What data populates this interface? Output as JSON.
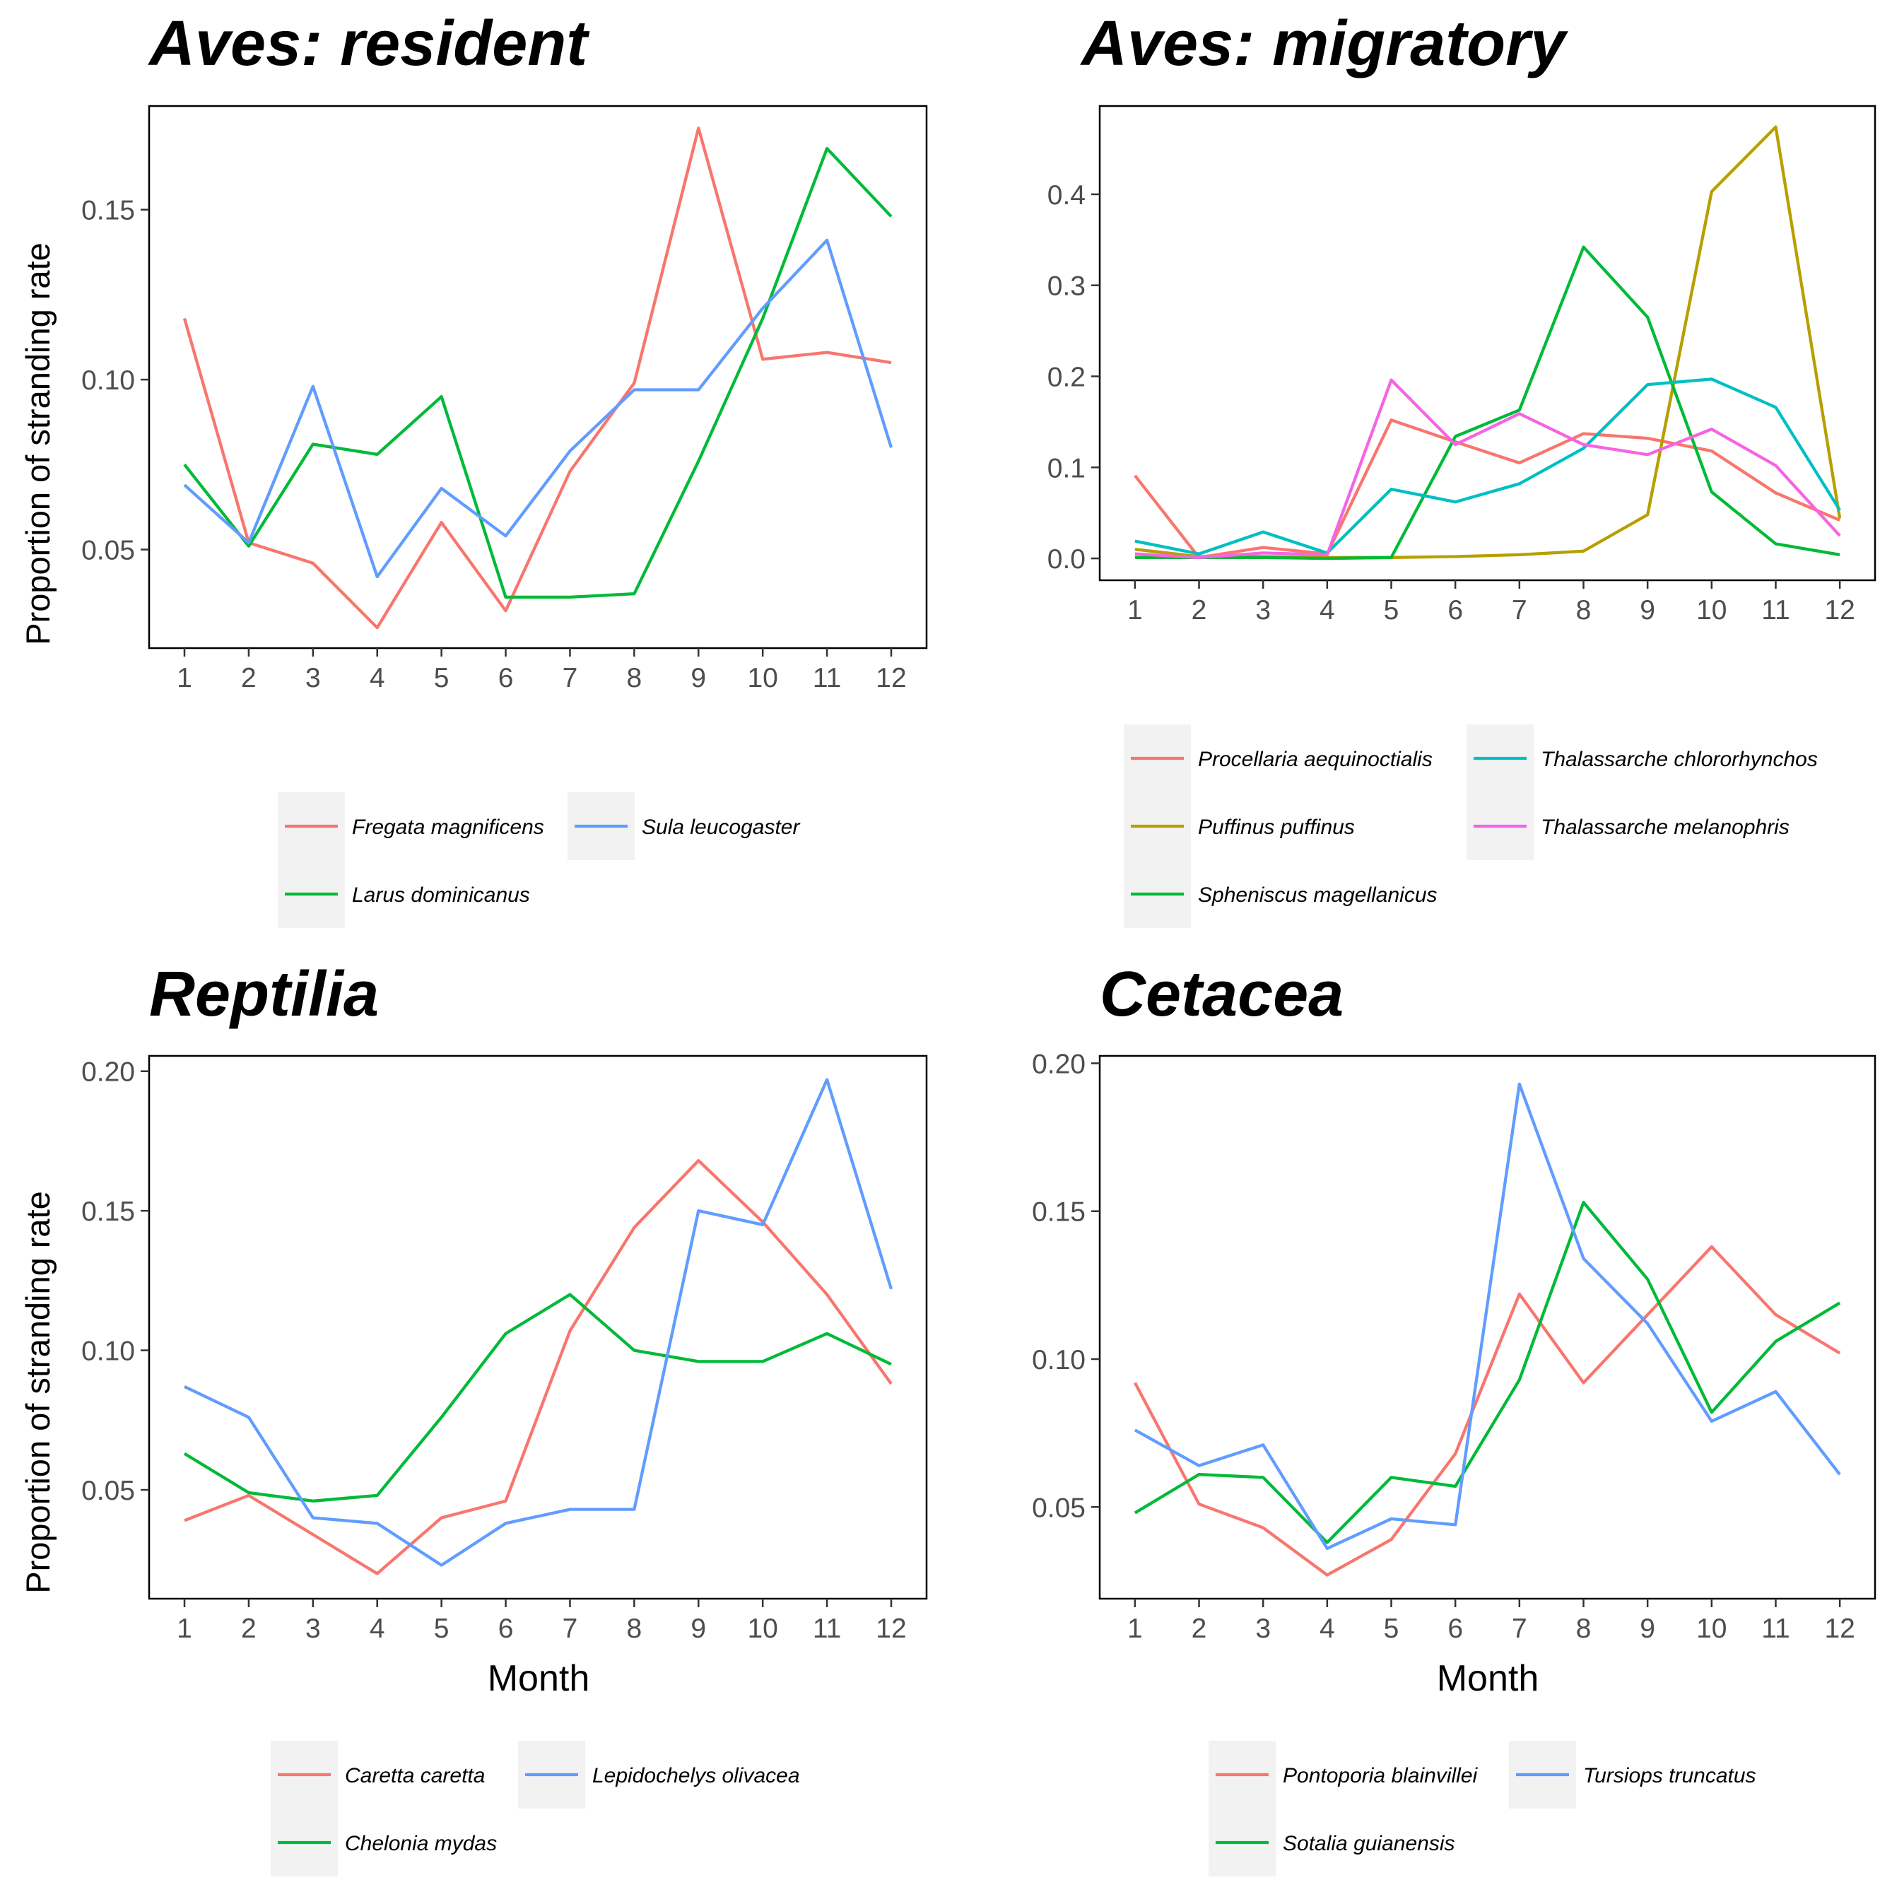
{
  "chart_data": [
    {
      "type": "line",
      "title": "Aves: resident",
      "xlabel": "",
      "ylabel": "Proportion of stranding rate",
      "x": [
        1,
        2,
        3,
        4,
        5,
        6,
        7,
        8,
        9,
        10,
        11,
        12
      ],
      "xticks": [
        "1",
        "2",
        "3",
        "4",
        "5",
        "6",
        "7",
        "8",
        "9",
        "10",
        "11",
        "12"
      ],
      "ylim": [
        0.021,
        0.1805
      ],
      "yticks": [
        "0.05",
        "0.10",
        "0.15"
      ],
      "ytick_values": [
        0.05,
        0.1,
        0.15
      ],
      "legend_position": "bottom",
      "series": [
        {
          "name": "Fregata magnificens",
          "color": "#F8766D",
          "values": [
            0.118,
            0.052,
            0.046,
            0.027,
            0.058,
            0.032,
            0.073,
            0.099,
            0.174,
            0.106,
            0.108,
            0.105
          ]
        },
        {
          "name": "Larus dominicanus",
          "color": "#00BA38",
          "values": [
            0.075,
            0.051,
            0.081,
            0.078,
            0.095,
            0.036,
            0.036,
            0.037,
            0.076,
            0.118,
            0.168,
            0.148
          ]
        },
        {
          "name": "Sula leucogaster",
          "color": "#619CFF",
          "values": [
            0.069,
            0.052,
            0.098,
            0.042,
            0.068,
            0.054,
            0.079,
            0.097,
            0.097,
            0.121,
            0.141,
            0.08
          ]
        }
      ]
    },
    {
      "type": "line",
      "title": "Aves: migratory",
      "xlabel": "",
      "ylabel": "",
      "x": [
        1,
        2,
        3,
        4,
        5,
        6,
        7,
        8,
        9,
        10,
        11,
        12
      ],
      "xticks": [
        "1",
        "2",
        "3",
        "4",
        "5",
        "6",
        "7",
        "8",
        "9",
        "10",
        "11",
        "12"
      ],
      "ylim": [
        -0.024,
        0.497
      ],
      "yticks": [
        "0.0",
        "0.1",
        "0.2",
        "0.3",
        "0.4"
      ],
      "ytick_values": [
        0.0,
        0.1,
        0.2,
        0.3,
        0.4
      ],
      "legend_position": "bottom",
      "series": [
        {
          "name": "Procellaria aequinoctialis",
          "color": "#F8766D",
          "values": [
            0.091,
            0.001,
            0.012,
            0.005,
            0.152,
            0.128,
            0.105,
            0.137,
            0.132,
            0.118,
            0.072,
            0.042
          ]
        },
        {
          "name": "Puffinus puffinus",
          "color": "#B79F00",
          "values": [
            0.01,
            0.002,
            0.002,
            0.001,
            0.001,
            0.002,
            0.004,
            0.008,
            0.048,
            0.403,
            0.474,
            0.044
          ]
        },
        {
          "name": "Spheniscus magellanicus",
          "color": "#00BA38",
          "values": [
            0.001,
            0.001,
            0.001,
            0.0,
            0.001,
            0.134,
            0.163,
            0.342,
            0.265,
            0.073,
            0.016,
            0.004
          ]
        },
        {
          "name": "Thalassarche chlororhynchos",
          "color": "#00BFC4",
          "values": [
            0.019,
            0.005,
            0.029,
            0.006,
            0.076,
            0.062,
            0.082,
            0.121,
            0.191,
            0.197,
            0.166,
            0.053
          ]
        },
        {
          "name": "Thalassarche melanophris",
          "color": "#F564E3",
          "values": [
            0.005,
            0.001,
            0.006,
            0.004,
            0.196,
            0.125,
            0.159,
            0.125,
            0.114,
            0.142,
            0.102,
            0.025
          ]
        }
      ]
    },
    {
      "type": "line",
      "title": "Reptilia",
      "xlabel": "Month",
      "ylabel": "Proportion of stranding rate",
      "x": [
        1,
        2,
        3,
        4,
        5,
        6,
        7,
        8,
        9,
        10,
        11,
        12
      ],
      "xticks": [
        "1",
        "2",
        "3",
        "4",
        "5",
        "6",
        "7",
        "8",
        "9",
        "10",
        "11",
        "12"
      ],
      "ylim": [
        0.011,
        0.2055
      ],
      "yticks": [
        "0.05",
        "0.10",
        "0.15",
        "0.20"
      ],
      "ytick_values": [
        0.05,
        0.1,
        0.15,
        0.2
      ],
      "legend_position": "bottom",
      "series": [
        {
          "name": "Caretta caretta",
          "color": "#F8766D",
          "values": [
            0.039,
            0.048,
            0.034,
            0.02,
            0.04,
            0.046,
            0.107,
            0.144,
            0.168,
            0.146,
            0.12,
            0.088
          ]
        },
        {
          "name": "Chelonia mydas",
          "color": "#00BA38",
          "values": [
            0.063,
            0.049,
            0.046,
            0.048,
            0.076,
            0.106,
            0.12,
            0.1,
            0.096,
            0.096,
            0.106,
            0.095
          ]
        },
        {
          "name": "Lepidochelys olivacea",
          "color": "#619CFF",
          "values": [
            0.087,
            0.076,
            0.04,
            0.038,
            0.023,
            0.038,
            0.043,
            0.043,
            0.15,
            0.145,
            0.197,
            0.122
          ]
        }
      ]
    },
    {
      "type": "line",
      "title": "Cetacea",
      "xlabel": "Month",
      "ylabel": "",
      "x": [
        1,
        2,
        3,
        4,
        5,
        6,
        7,
        8,
        9,
        10,
        11,
        12
      ],
      "xticks": [
        "1",
        "2",
        "3",
        "4",
        "5",
        "6",
        "7",
        "8",
        "9",
        "10",
        "11",
        "12"
      ],
      "ylim": [
        0.019,
        0.2025
      ],
      "yticks": [
        "0.05",
        "0.10",
        "0.15",
        "0.20"
      ],
      "ytick_values": [
        0.05,
        0.1,
        0.15,
        0.2
      ],
      "legend_position": "bottom",
      "series": [
        {
          "name": "Pontoporia blainvillei",
          "color": "#F8766D",
          "values": [
            0.092,
            0.051,
            0.043,
            0.027,
            0.039,
            0.068,
            0.122,
            0.092,
            0.115,
            0.138,
            0.115,
            0.102
          ]
        },
        {
          "name": "Sotalia guianensis",
          "color": "#00BA38",
          "values": [
            0.048,
            0.061,
            0.06,
            0.038,
            0.06,
            0.057,
            0.093,
            0.153,
            0.127,
            0.082,
            0.106,
            0.119
          ]
        },
        {
          "name": "Tursiops truncatus",
          "color": "#619CFF",
          "values": [
            0.076,
            0.064,
            0.071,
            0.036,
            0.046,
            0.044,
            0.193,
            0.134,
            0.112,
            0.079,
            0.089,
            0.061
          ]
        }
      ]
    }
  ]
}
